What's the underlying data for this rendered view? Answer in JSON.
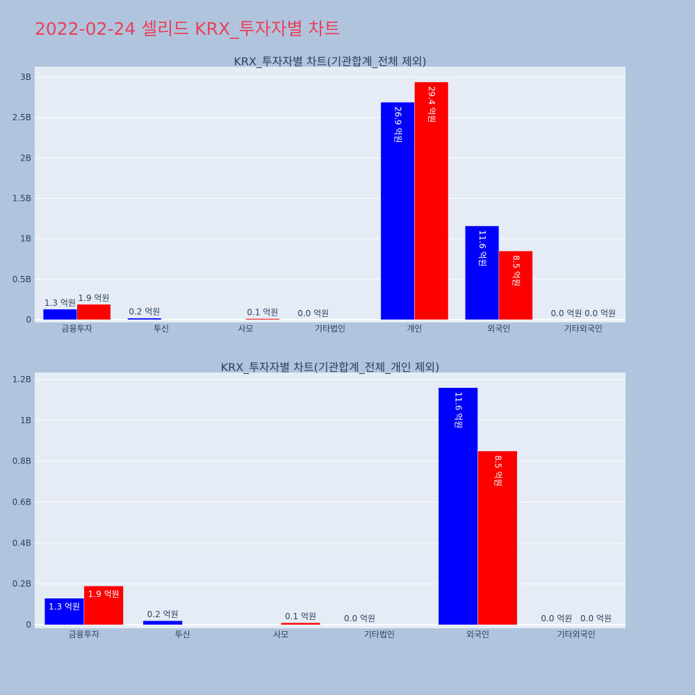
{
  "page_title": "2022-02-24 셀리드 KRX_투자자별 차트",
  "colors": {
    "series1": "#0000ff",
    "series2": "#ff0000",
    "plot_bg": "#e5ecf6",
    "page_bg": "#b0c4de",
    "title": "#e8405a"
  },
  "chart_data": [
    {
      "type": "bar",
      "title": "KRX_투자자별 차트(기관합계_전체 제외)",
      "categories": [
        "금융투자",
        "투신",
        "사모",
        "기타법인",
        "개인",
        "외국인",
        "기타외국인"
      ],
      "series": [
        {
          "values": [
            130000000,
            20000000,
            0,
            0,
            2690000000,
            1160000000,
            0
          ],
          "labels": [
            "1.3 억원",
            "0.2 억원",
            "",
            "0.0 억원",
            "26.9 억원",
            "11.6 억원",
            "0.0 억원"
          ]
        },
        {
          "values": [
            190000000,
            0,
            10000000,
            0,
            2940000000,
            850000000,
            0
          ],
          "labels": [
            "1.9 억원",
            "",
            "0.1 억원",
            "",
            "29.4 억원",
            "8.5 억원",
            "0.0 억원"
          ]
        }
      ],
      "ylim": [
        0,
        3000000000
      ],
      "yticks": [
        0,
        500000000,
        1000000000,
        1500000000,
        2000000000,
        2500000000,
        3000000000
      ],
      "ytick_labels": [
        "0",
        "0.5B",
        "1B",
        "1.5B",
        "2B",
        "2.5B",
        "3B"
      ],
      "grid": true
    },
    {
      "type": "bar",
      "title": "KRX_투자자별 차트(기관합계_전체_개인 제외)",
      "categories": [
        "금융투자",
        "투신",
        "사모",
        "기타법인",
        "외국인",
        "기타외국인"
      ],
      "series": [
        {
          "values": [
            130000000,
            20000000,
            0,
            0,
            1160000000,
            0
          ],
          "labels": [
            "1.3 억원",
            "0.2 억원",
            "",
            "0.0 억원",
            "11.6 억원",
            "0.0 억원"
          ]
        },
        {
          "values": [
            190000000,
            0,
            10000000,
            0,
            850000000,
            0
          ],
          "labels": [
            "1.9 억원",
            "",
            "0.1 억원",
            "",
            "8.5 억원",
            "0.0 억원"
          ]
        }
      ],
      "ylim": [
        0,
        1200000000
      ],
      "yticks": [
        0,
        200000000,
        400000000,
        600000000,
        800000000,
        1000000000,
        1200000000
      ],
      "ytick_labels": [
        "0",
        "0.2B",
        "0.4B",
        "0.6B",
        "0.8B",
        "1B",
        "1.2B"
      ],
      "grid": true
    }
  ]
}
